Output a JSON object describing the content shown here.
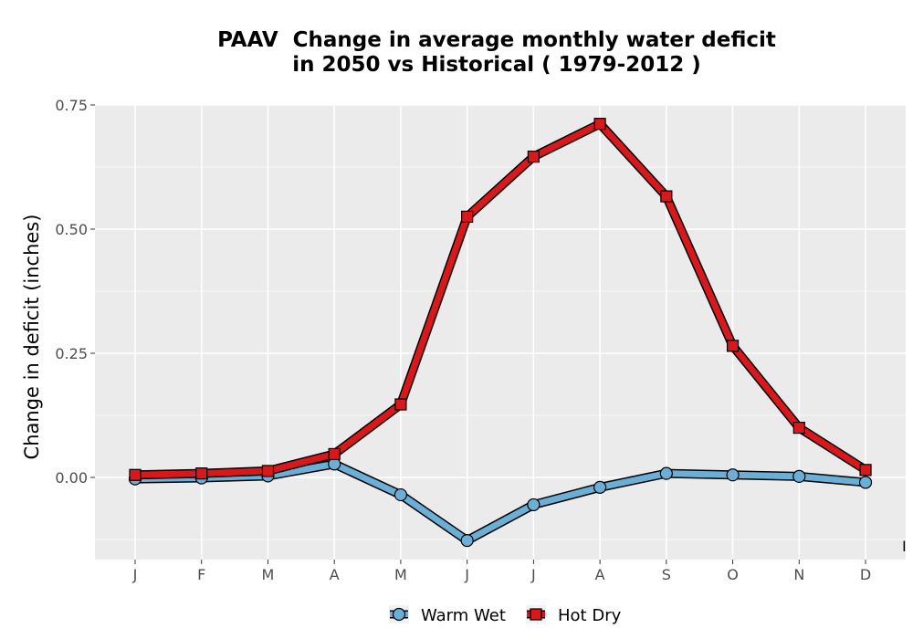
{
  "chart_data": {
    "type": "line",
    "title_lines": [
      "PAAV  Change in average monthly water deficit",
      "in 2050 vs Historical ( 1979-2012 )"
    ],
    "ylabel": "Change in deficit (inches)",
    "xlabel": "",
    "categories": [
      "J",
      "F",
      "M",
      "A",
      "M",
      "J",
      "J",
      "A",
      "S",
      "O",
      "N",
      "D"
    ],
    "ylim": [
      -0.17,
      0.75
    ],
    "yticks": [
      0.0,
      0.25,
      0.5,
      0.75
    ],
    "ytick_labels": [
      "0.00",
      "0.25",
      "0.50",
      "0.75"
    ],
    "grid": true,
    "legend_position": "bottom",
    "stray_label": "I",
    "series": [
      {
        "name": "Warm Wet",
        "marker": "circle",
        "color": "#6baed6",
        "values": [
          -0.003,
          -0.001,
          0.003,
          0.027,
          -0.035,
          -0.127,
          -0.055,
          -0.02,
          0.008,
          0.005,
          0.002,
          -0.01
        ]
      },
      {
        "name": "Hot Dry",
        "marker": "square",
        "color": "#d7191c",
        "values": [
          0.005,
          0.008,
          0.013,
          0.047,
          0.147,
          0.525,
          0.646,
          0.712,
          0.566,
          0.265,
          0.1,
          0.015
        ]
      }
    ]
  }
}
